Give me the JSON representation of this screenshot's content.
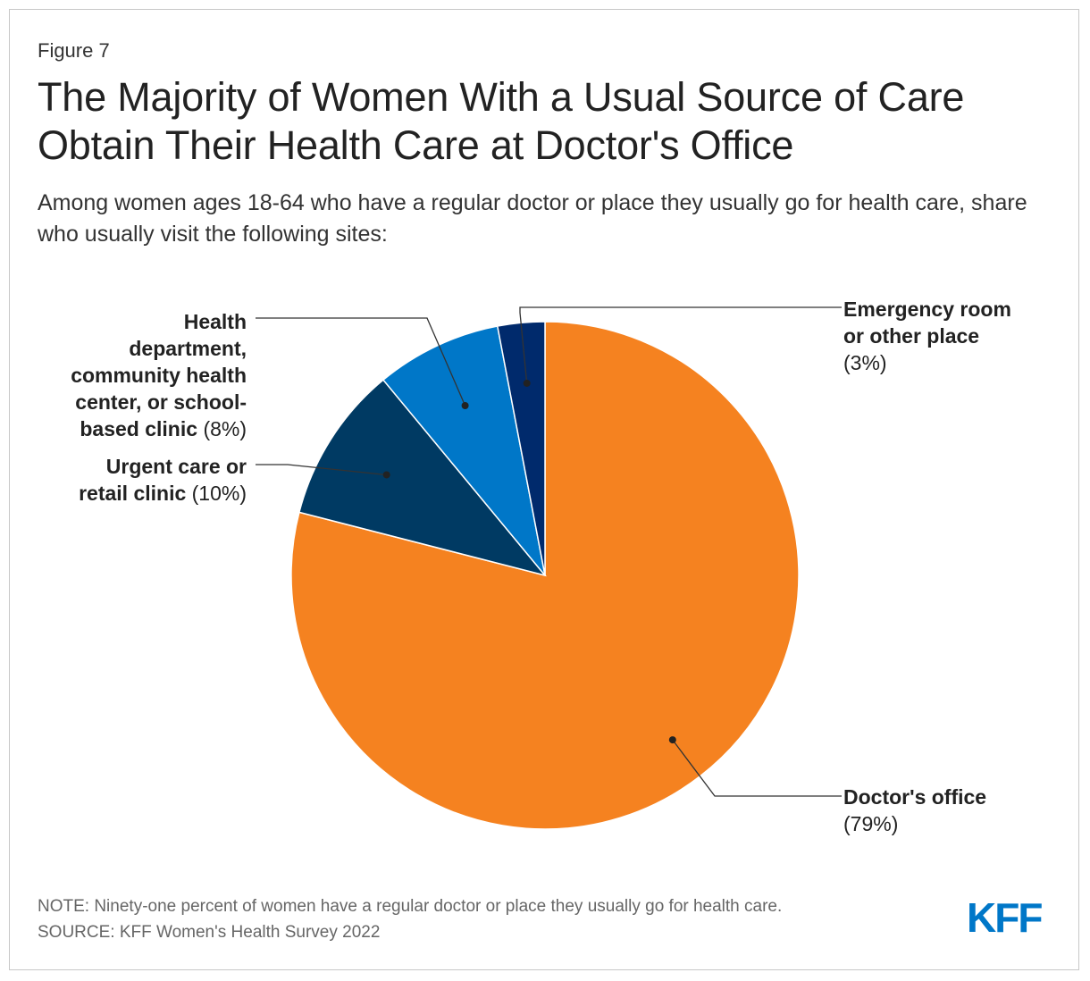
{
  "figure_label": "Figure 7",
  "title": "The Majority of Women With a Usual Source of Care Obtain Their Health Care at Doctor's Office",
  "subtitle": "Among women ages 18-64 who have a regular doctor or place they usually go for health care, share who usually visit the following sites:",
  "chart_data": {
    "type": "pie",
    "title": "The Majority of Women With a Usual Source of Care Obtain Their Health Care at Doctor's Office",
    "unit": "%",
    "slices": [
      {
        "key": "doctor",
        "label": "Doctor's office",
        "pct_text": "(79%)",
        "value": 79,
        "color": "#f58220"
      },
      {
        "key": "urgent",
        "label": "Urgent care or retail clinic",
        "pct_text": "(10%)",
        "value": 10,
        "color": "#003a63"
      },
      {
        "key": "health",
        "label": "Health department, community health center, or school-based clinic",
        "pct_text": "(8%)",
        "value": 8,
        "color": "#0077c8"
      },
      {
        "key": "er",
        "label": "Emergency room or other place",
        "pct_text": "(3%)",
        "value": 3,
        "color": "#002a6c"
      }
    ]
  },
  "labels": {
    "health_lines": [
      "Health",
      "department,",
      "community health",
      "center, or school-",
      "based clinic"
    ],
    "urgent_lines": [
      "Urgent care or",
      "retail clinic"
    ],
    "er_lines": [
      "Emergency room",
      "or other place"
    ],
    "doctor_lines": [
      "Doctor's office"
    ]
  },
  "note": "NOTE: Ninety-one percent of women have a regular doctor or place they usually go for health care.",
  "source": "SOURCE: KFF Women's Health Survey 2022",
  "logo_text": "KFF",
  "colors": {
    "logo": "#0077c8",
    "leader": "#333333"
  }
}
